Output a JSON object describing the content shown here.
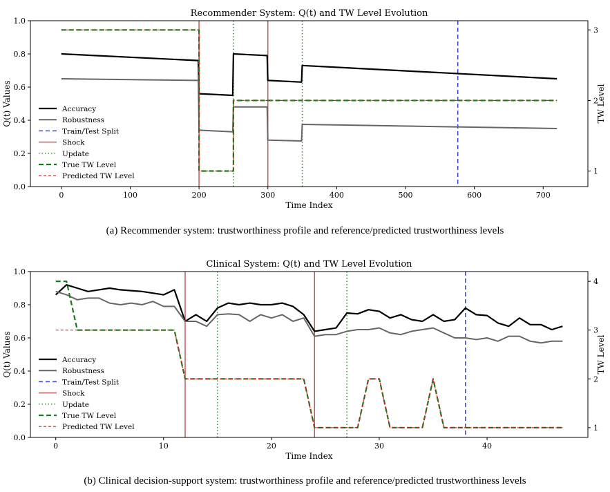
{
  "colors": {
    "accuracy": "#000000",
    "robustness": "#666666",
    "split": "#3344dd",
    "shock": "#c05a5a",
    "update": "#2e8b2e",
    "true_tw": "#1a7a1a",
    "pred_tw": "#cc2222"
  },
  "captions": {
    "a": "(a) Recommender system: trustworthiness profile and reference/predicted trustworthiness levels",
    "b": "(b) Clinical decision-support system: trustworthiness profile and reference/predicted trustworthiness levels"
  },
  "chart_data": [
    {
      "type": "line",
      "title": "Recommender System: Q(t) and TW Level Evolution",
      "xlabel": "Time Index",
      "ylabel": "Q(t) Values",
      "y2label": "TW Level",
      "xlim": [
        -45,
        765
      ],
      "ylim": [
        0,
        1.0
      ],
      "y2lim": [
        0.78,
        3.13
      ],
      "xticks": [
        0,
        100,
        200,
        300,
        400,
        500,
        600,
        700
      ],
      "yticks": [
        0.0,
        0.2,
        0.4,
        0.6,
        0.8,
        1.0
      ],
      "y2ticks": [
        1,
        2,
        3
      ],
      "grid": false,
      "legend_location": "center-left",
      "legend": [
        "Accuracy",
        "Robustness",
        "Train/Test Split",
        "Shock",
        "Update",
        "True TW Level",
        "Predicted TW Level"
      ],
      "series": [
        {
          "name": "Accuracy",
          "axis": "left",
          "x": [
            0,
            199,
            200,
            249,
            250,
            299,
            300,
            349,
            350,
            720
          ],
          "y": [
            0.8,
            0.76,
            0.56,
            0.55,
            0.8,
            0.79,
            0.64,
            0.63,
            0.73,
            0.65
          ]
        },
        {
          "name": "Robustness",
          "axis": "left",
          "x": [
            0,
            199,
            200,
            249,
            250,
            299,
            300,
            349,
            350,
            720
          ],
          "y": [
            0.65,
            0.64,
            0.34,
            0.33,
            0.48,
            0.48,
            0.28,
            0.275,
            0.375,
            0.35
          ]
        },
        {
          "name": "True TW Level",
          "axis": "right",
          "x": [
            0,
            200,
            200,
            250,
            250,
            720
          ],
          "y": [
            3,
            3,
            1,
            1,
            2,
            2
          ]
        },
        {
          "name": "Predicted TW Level",
          "axis": "right",
          "x": [
            0,
            200,
            200,
            250,
            250,
            720
          ],
          "y": [
            3,
            3,
            1,
            1,
            2,
            2
          ]
        }
      ],
      "shock_x": [
        200,
        300
      ],
      "update_x": [
        250,
        350
      ],
      "split_x": 576
    },
    {
      "type": "line",
      "title": "Clinical System: Q(t) and TW Level Evolution",
      "xlabel": "Time Index",
      "ylabel": "Q(t) Values",
      "y2label": "TW Level",
      "xlim": [
        -2.35,
        49.35
      ],
      "ylim": [
        0,
        1.0
      ],
      "y2lim": [
        0.8,
        4.2
      ],
      "xticks": [
        0,
        10,
        20,
        30,
        40
      ],
      "yticks": [
        0.0,
        0.2,
        0.4,
        0.6,
        0.8,
        1.0
      ],
      "y2ticks": [
        1,
        2,
        3,
        4
      ],
      "grid": false,
      "legend_location": "center-left",
      "legend": [
        "Accuracy",
        "Robustness",
        "Train/Test Split",
        "Shock",
        "Update",
        "True TW Level",
        "Predicted TW Level"
      ],
      "series": [
        {
          "name": "Accuracy",
          "axis": "left",
          "x": [
            0,
            1,
            2,
            3,
            4,
            5,
            6,
            7,
            8,
            9,
            10,
            11,
            12,
            13,
            14,
            15,
            16,
            17,
            18,
            19,
            20,
            21,
            22,
            23,
            24,
            25,
            26,
            27,
            28,
            29,
            30,
            31,
            32,
            33,
            34,
            35,
            36,
            37,
            38,
            39,
            40,
            41,
            42,
            43,
            44,
            45,
            46,
            47
          ],
          "y": [
            0.86,
            0.92,
            0.9,
            0.88,
            0.89,
            0.9,
            0.89,
            0.885,
            0.88,
            0.87,
            0.86,
            0.89,
            0.7,
            0.74,
            0.7,
            0.78,
            0.81,
            0.8,
            0.81,
            0.8,
            0.8,
            0.81,
            0.79,
            0.74,
            0.64,
            0.65,
            0.66,
            0.75,
            0.745,
            0.77,
            0.76,
            0.72,
            0.74,
            0.71,
            0.7,
            0.74,
            0.7,
            0.71,
            0.78,
            0.74,
            0.735,
            0.69,
            0.67,
            0.72,
            0.68,
            0.68,
            0.65,
            0.67
          ]
        },
        {
          "name": "Robustness",
          "axis": "left",
          "x": [
            0,
            1,
            2,
            3,
            4,
            5,
            6,
            7,
            8,
            9,
            10,
            11,
            12,
            13,
            14,
            15,
            16,
            17,
            18,
            19,
            20,
            21,
            22,
            23,
            24,
            25,
            26,
            27,
            28,
            29,
            30,
            31,
            32,
            33,
            34,
            35,
            36,
            37,
            38,
            39,
            40,
            41,
            42,
            43,
            44,
            45,
            46,
            47
          ],
          "y": [
            0.88,
            0.86,
            0.83,
            0.84,
            0.84,
            0.81,
            0.8,
            0.81,
            0.8,
            0.82,
            0.79,
            0.79,
            0.7,
            0.7,
            0.67,
            0.74,
            0.745,
            0.74,
            0.7,
            0.74,
            0.72,
            0.74,
            0.7,
            0.72,
            0.61,
            0.62,
            0.62,
            0.64,
            0.65,
            0.65,
            0.66,
            0.63,
            0.62,
            0.64,
            0.65,
            0.66,
            0.63,
            0.6,
            0.6,
            0.59,
            0.6,
            0.58,
            0.61,
            0.61,
            0.58,
            0.57,
            0.58,
            0.58
          ]
        },
        {
          "name": "True TW Level",
          "axis": "right",
          "x": [
            0,
            1,
            2,
            11,
            12,
            23,
            24,
            28,
            29,
            30,
            31,
            34,
            35,
            36,
            47
          ],
          "y": [
            4,
            4,
            3,
            3,
            2,
            2,
            1,
            1,
            2,
            2,
            1,
            1,
            2,
            1,
            1
          ]
        },
        {
          "name": "Predicted TW Level",
          "axis": "right",
          "x": [
            0,
            2,
            11,
            12,
            23,
            24,
            28,
            29,
            30,
            31,
            34,
            35,
            36,
            47
          ],
          "y": [
            3,
            3,
            3,
            2,
            2,
            1,
            1,
            2,
            2,
            1,
            1,
            2,
            1,
            1
          ]
        }
      ],
      "shock_x": [
        12,
        24
      ],
      "update_x": [
        15,
        27
      ],
      "split_x": 38
    }
  ]
}
